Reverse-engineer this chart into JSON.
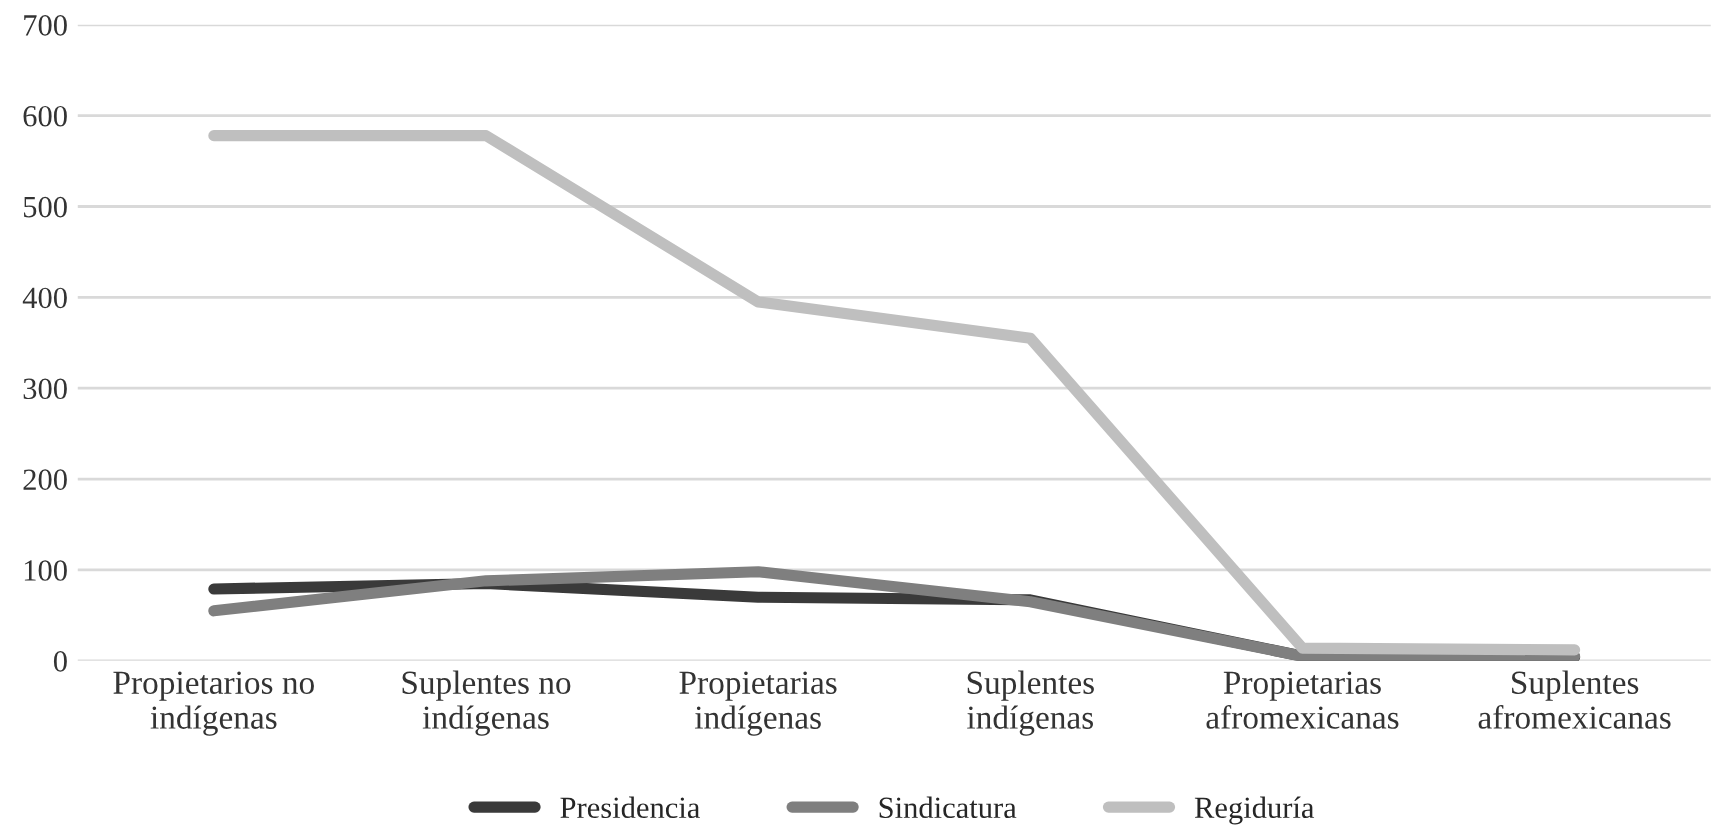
{
  "chart_data": {
    "type": "line",
    "categories": [
      "Propietarios no\nindígenas",
      "Suplentes no\nindígenas",
      "Propietarias\nindígenas",
      "Suplentes\nindígenas",
      "Propietarias\nafromexicanas",
      "Suplentes\nafromexicanas"
    ],
    "series": [
      {
        "name": "Presidencia",
        "color": "#3a3a3a",
        "values": [
          79,
          85,
          70,
          67,
          5,
          4
        ]
      },
      {
        "name": "Sindicatura",
        "color": "#7f7f7f",
        "values": [
          55,
          88,
          98,
          65,
          5,
          5
        ]
      },
      {
        "name": "Regiduría",
        "color": "#bfbfbf",
        "values": [
          578,
          578,
          395,
          355,
          14,
          12
        ]
      }
    ],
    "ylim": [
      0,
      700
    ],
    "yticks": [
      0,
      100,
      200,
      300,
      400,
      500,
      600,
      700
    ],
    "grid": "y",
    "legend": "bottom",
    "marker": "none",
    "line_style": "solid"
  }
}
